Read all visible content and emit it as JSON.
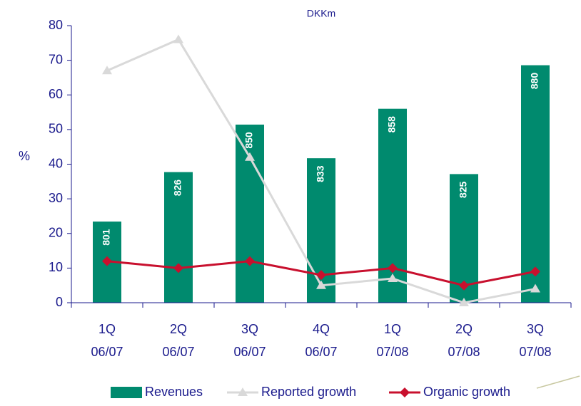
{
  "chart_data": {
    "type": "bar_line",
    "y2_label": "DKKm",
    "ylabel": "%",
    "categories": [
      "1Q 06/07",
      "2Q 06/07",
      "3Q 06/07",
      "4Q 06/07",
      "1Q 07/08",
      "2Q 07/08",
      "3Q 07/08"
    ],
    "ylim": [
      0,
      80
    ],
    "yticks": [
      0,
      10,
      20,
      30,
      40,
      50,
      60,
      70,
      80
    ],
    "y2lim": [
      760,
      900
    ],
    "series": [
      {
        "name": "Revenues",
        "type": "bar",
        "axis": "y2",
        "color": "#008a6e",
        "values": [
          801,
          826,
          850,
          833,
          858,
          825,
          880
        ]
      },
      {
        "name": "Reported growth",
        "type": "line",
        "color": "#d9d9d9",
        "marker": "triangle",
        "values": [
          67,
          76,
          42,
          5,
          7,
          0,
          4
        ]
      },
      {
        "name": "Organic growth",
        "type": "line",
        "color": "#c8102e",
        "marker": "diamond",
        "values": [
          12,
          10,
          12,
          8,
          10,
          5,
          9
        ]
      }
    ]
  }
}
